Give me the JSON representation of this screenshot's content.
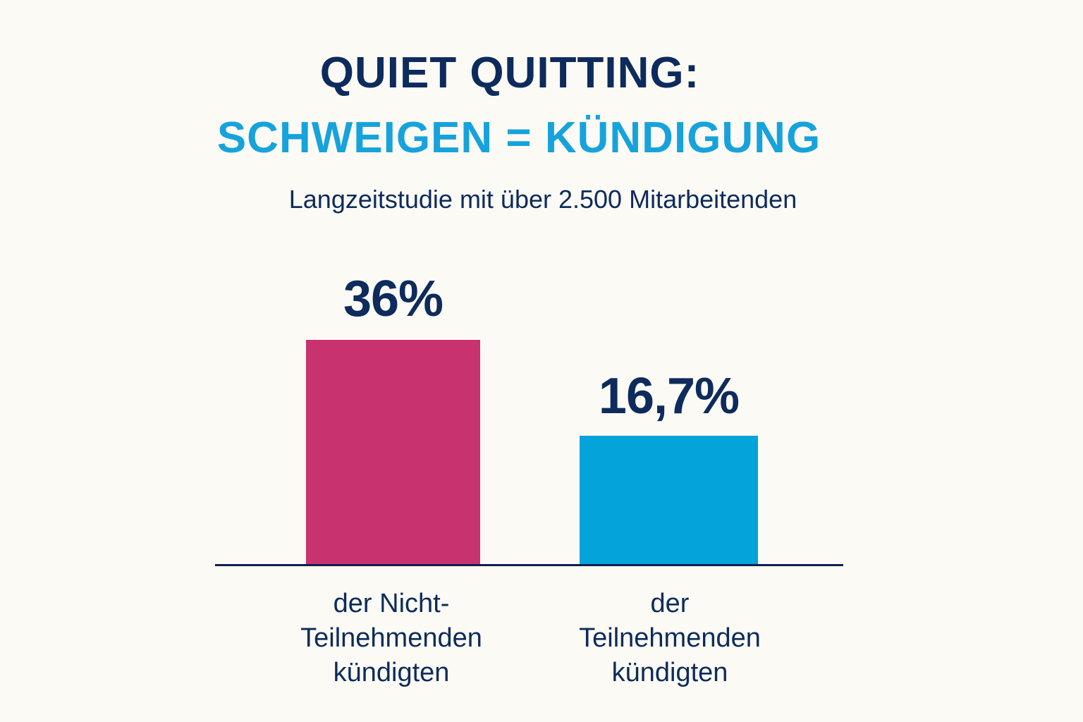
{
  "header": {
    "title_line1": "QUIET QUITTING:",
    "title_line2": "SCHWEIGEN = KÜNDIGUNG",
    "subtitle": "Langzeitstudie mit über 2.500 Mitarbeitenden"
  },
  "colors": {
    "background": "#fcfaf4",
    "title_dark": "#0d2b5c",
    "title_accent": "#16a3dc",
    "bar_non_participants": "#c8326e",
    "bar_participants": "#04a3da",
    "axis": "#0d1f4d"
  },
  "bars": [
    {
      "value_label": "36%",
      "label_lines": [
        "der Nicht-",
        "Teilnehmenden",
        "kündigten"
      ]
    },
    {
      "value_label": "16,7%",
      "label_lines": [
        "der",
        "Teilnehmenden",
        "kündigten"
      ]
    }
  ],
  "chart_data": {
    "type": "bar",
    "title": "QUIET QUITTING: SCHWEIGEN = KÜNDIGUNG",
    "subtitle": "Langzeitstudie mit über 2.500 Mitarbeitenden",
    "categories": [
      "der Nicht-Teilnehmenden kündigten",
      "der Teilnehmenden kündigten"
    ],
    "values": [
      36,
      16.7
    ],
    "value_labels": [
      "36%",
      "16,7%"
    ],
    "unit": "%",
    "colors": [
      "#c8326e",
      "#04a3da"
    ],
    "xlabel": "",
    "ylabel": "",
    "grid": false,
    "legend": null,
    "axis_y_visible": false
  }
}
